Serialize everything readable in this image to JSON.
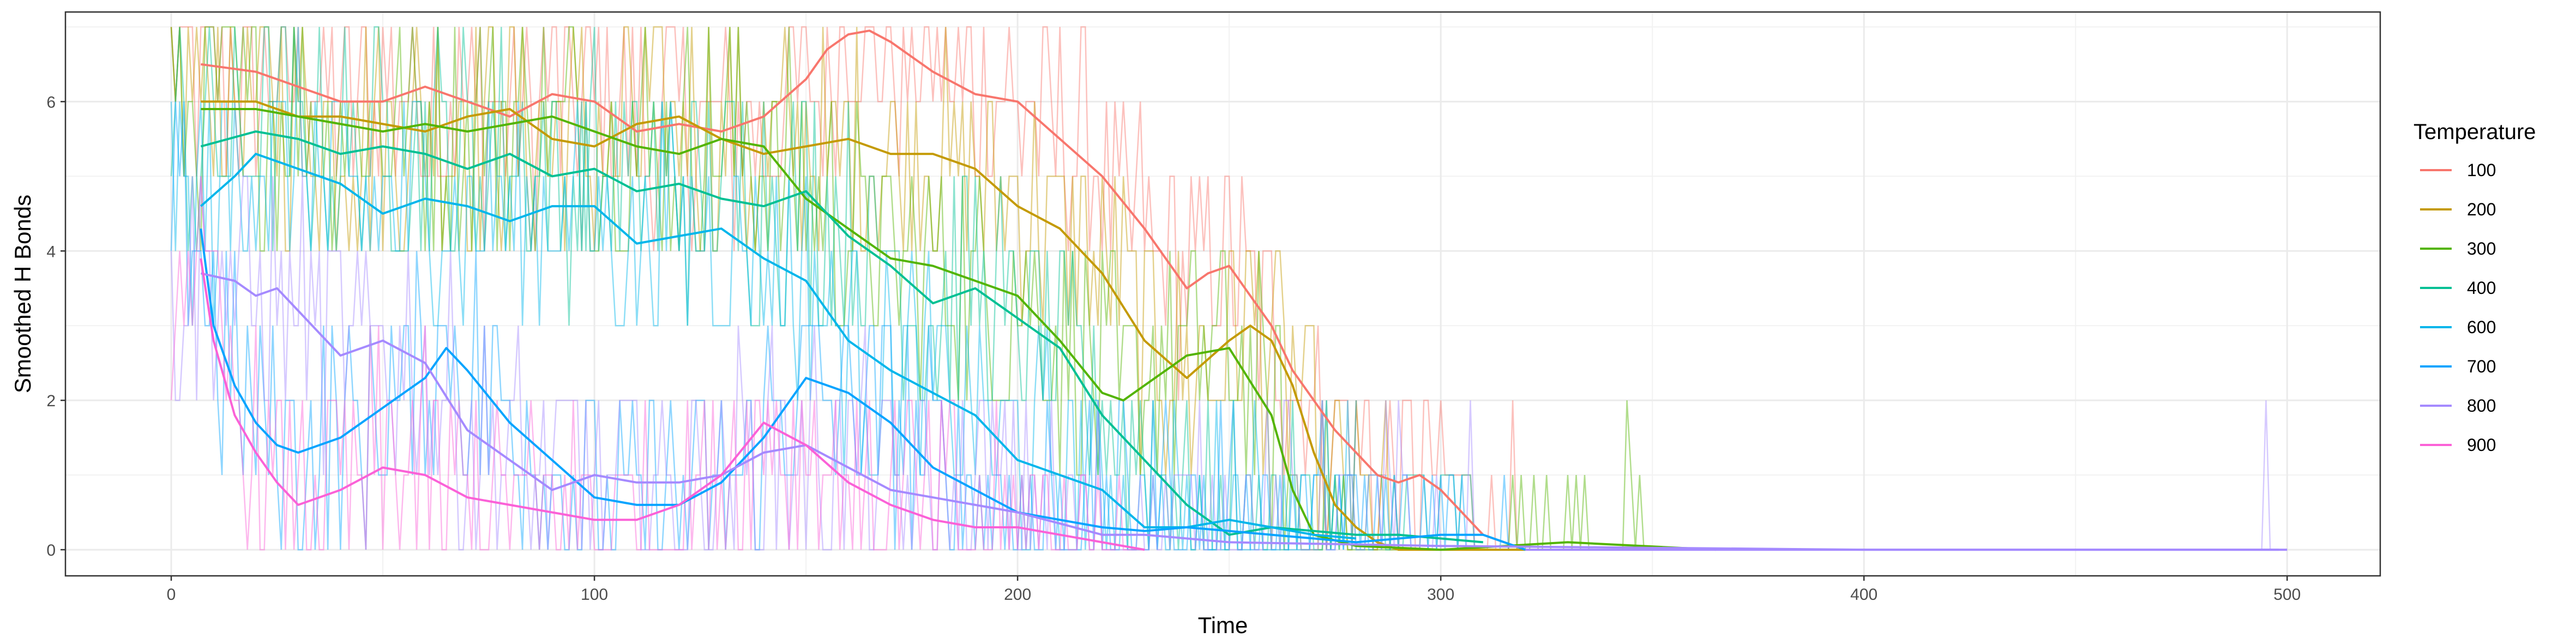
{
  "chart_data": {
    "type": "line",
    "title": "",
    "xlabel": "Time",
    "ylabel": "Smoothed H Bonds",
    "xlim": [
      -25,
      522
    ],
    "ylim": [
      -0.35,
      7.2
    ],
    "x_ticks": [
      0,
      100,
      200,
      300,
      400,
      500
    ],
    "y_ticks": [
      0,
      2,
      4,
      6
    ],
    "grid": true,
    "legend": {
      "title": "Temperature",
      "placement": "right"
    },
    "note_raw": "Faint, semi-transparent raw series (integer counts 0-7) are drawn behind each smoothed line.",
    "series": [
      {
        "name": "100",
        "color": "#F8766D",
        "x": [
          7,
          20,
          30,
          40,
          50,
          60,
          70,
          80,
          90,
          100,
          110,
          120,
          130,
          140,
          150,
          155,
          160,
          165,
          170,
          175,
          180,
          190,
          200,
          210,
          220,
          230,
          240,
          245,
          250,
          255,
          260,
          265,
          270,
          275,
          280,
          285,
          290,
          295,
          300,
          305,
          310,
          320
        ],
        "y": [
          6.5,
          6.4,
          6.2,
          6.0,
          6.0,
          6.2,
          6.0,
          5.8,
          6.1,
          6.0,
          5.6,
          5.7,
          5.6,
          5.8,
          6.3,
          6.7,
          6.9,
          6.95,
          6.8,
          6.6,
          6.4,
          6.1,
          6.0,
          5.5,
          5.0,
          4.3,
          3.5,
          3.7,
          3.8,
          3.4,
          3.0,
          2.4,
          2.0,
          1.6,
          1.3,
          1.0,
          0.9,
          1.0,
          0.8,
          0.5,
          0.2,
          0.0
        ]
      },
      {
        "name": "200",
        "color": "#C49A00",
        "x": [
          7,
          20,
          30,
          40,
          50,
          60,
          70,
          80,
          90,
          100,
          110,
          120,
          130,
          140,
          150,
          160,
          170,
          180,
          190,
          200,
          210,
          220,
          230,
          240,
          250,
          255,
          260,
          265,
          270,
          275,
          280,
          285,
          290,
          300,
          310,
          320
        ],
        "y": [
          6.0,
          6.0,
          5.8,
          5.8,
          5.7,
          5.6,
          5.8,
          5.9,
          5.5,
          5.4,
          5.7,
          5.8,
          5.5,
          5.3,
          5.4,
          5.5,
          5.3,
          5.3,
          5.1,
          4.6,
          4.3,
          3.7,
          2.8,
          2.3,
          2.8,
          3.0,
          2.8,
          2.2,
          1.3,
          0.6,
          0.3,
          0.1,
          0.0,
          0.0,
          0.0,
          0.0
        ]
      },
      {
        "name": "300",
        "color": "#53B400",
        "x": [
          7,
          20,
          30,
          40,
          50,
          60,
          70,
          80,
          90,
          100,
          110,
          120,
          130,
          140,
          150,
          160,
          170,
          180,
          190,
          200,
          210,
          220,
          225,
          230,
          240,
          250,
          260,
          265,
          270,
          280,
          300,
          330,
          365
        ],
        "y": [
          5.9,
          5.9,
          5.8,
          5.7,
          5.6,
          5.7,
          5.6,
          5.7,
          5.8,
          5.6,
          5.4,
          5.3,
          5.5,
          5.4,
          4.7,
          4.3,
          3.9,
          3.8,
          3.6,
          3.4,
          2.8,
          2.1,
          2.0,
          2.2,
          2.6,
          2.7,
          1.8,
          0.8,
          0.2,
          0.05,
          0.0,
          0.1,
          0.0
        ]
      },
      {
        "name": "400",
        "color": "#00C094",
        "x": [
          7,
          20,
          30,
          40,
          50,
          60,
          70,
          80,
          90,
          100,
          110,
          120,
          130,
          140,
          150,
          160,
          170,
          180,
          190,
          200,
          210,
          220,
          230,
          240,
          250,
          260,
          270,
          280,
          290,
          300,
          310
        ],
        "y": [
          5.4,
          5.6,
          5.5,
          5.3,
          5.4,
          5.3,
          5.1,
          5.3,
          5.0,
          5.1,
          4.8,
          4.9,
          4.7,
          4.6,
          4.8,
          4.2,
          3.8,
          3.3,
          3.5,
          3.1,
          2.7,
          1.8,
          1.2,
          0.6,
          0.2,
          0.3,
          0.25,
          0.2,
          0.2,
          0.15,
          0.1
        ]
      },
      {
        "name": "600",
        "color": "#00B6EB",
        "x": [
          7,
          15,
          20,
          30,
          40,
          50,
          60,
          70,
          80,
          90,
          100,
          110,
          120,
          130,
          140,
          150,
          160,
          170,
          180,
          190,
          200,
          210,
          220,
          230,
          240,
          250,
          260,
          270,
          280
        ],
        "y": [
          4.6,
          5.0,
          5.3,
          5.1,
          4.9,
          4.5,
          4.7,
          4.6,
          4.4,
          4.6,
          4.6,
          4.1,
          4.2,
          4.3,
          3.9,
          3.6,
          2.8,
          2.4,
          2.1,
          1.8,
          1.2,
          1.0,
          0.8,
          0.3,
          0.3,
          0.4,
          0.3,
          0.2,
          0.15
        ]
      },
      {
        "name": "700",
        "color": "#06A4FF",
        "x": [
          7,
          10,
          15,
          20,
          25,
          30,
          40,
          50,
          60,
          65,
          70,
          80,
          90,
          100,
          110,
          120,
          130,
          140,
          150,
          160,
          170,
          180,
          190,
          200,
          210,
          220,
          230,
          240,
          250,
          260,
          270,
          280,
          300,
          310,
          320
        ],
        "y": [
          4.3,
          3.0,
          2.2,
          1.7,
          1.4,
          1.3,
          1.5,
          1.9,
          2.3,
          2.7,
          2.4,
          1.7,
          1.2,
          0.7,
          0.6,
          0.6,
          0.9,
          1.5,
          2.3,
          2.1,
          1.7,
          1.1,
          0.8,
          0.5,
          0.4,
          0.3,
          0.25,
          0.3,
          0.25,
          0.2,
          0.15,
          0.1,
          0.2,
          0.2,
          0.0
        ]
      },
      {
        "name": "800",
        "color": "#A58AFF",
        "x": [
          7,
          15,
          20,
          25,
          30,
          40,
          50,
          60,
          70,
          80,
          90,
          100,
          110,
          120,
          130,
          140,
          150,
          160,
          170,
          180,
          190,
          200,
          210,
          220,
          230,
          240,
          250,
          300,
          400,
          500
        ],
        "y": [
          3.7,
          3.6,
          3.4,
          3.5,
          3.2,
          2.6,
          2.8,
          2.5,
          1.6,
          1.2,
          0.8,
          1.0,
          0.9,
          0.9,
          1.0,
          1.3,
          1.4,
          1.1,
          0.8,
          0.7,
          0.6,
          0.5,
          0.35,
          0.2,
          0.2,
          0.15,
          0.1,
          0.05,
          0.0,
          0.0
        ]
      },
      {
        "name": "900",
        "color": "#FB61D7",
        "x": [
          7,
          10,
          15,
          20,
          25,
          30,
          40,
          50,
          60,
          70,
          80,
          90,
          100,
          110,
          120,
          130,
          140,
          150,
          160,
          170,
          180,
          190,
          200,
          210,
          220,
          230
        ],
        "y": [
          3.9,
          2.8,
          1.8,
          1.3,
          0.9,
          0.6,
          0.8,
          1.1,
          1.0,
          0.7,
          0.6,
          0.5,
          0.4,
          0.4,
          0.6,
          1.0,
          1.7,
          1.4,
          0.9,
          0.6,
          0.4,
          0.3,
          0.3,
          0.2,
          0.1,
          0.0
        ]
      }
    ]
  }
}
